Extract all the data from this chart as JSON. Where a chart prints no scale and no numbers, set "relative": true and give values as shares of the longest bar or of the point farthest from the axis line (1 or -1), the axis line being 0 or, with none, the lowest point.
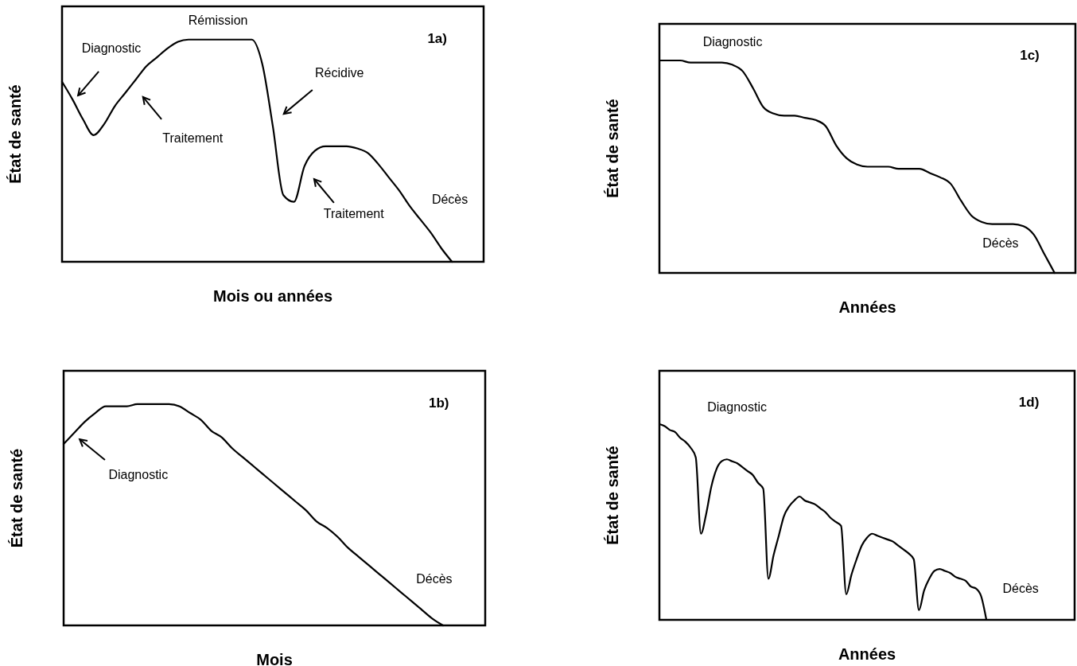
{
  "chart_data": [
    {
      "type": "line",
      "title": "1a)",
      "xlabel": "Mois ou années",
      "ylabel": "État de santé",
      "relative": true,
      "annotations": [
        "Rémission",
        "Diagnostic",
        "Traitement",
        "Récidive",
        "Traitement",
        "Décès"
      ],
      "categories": [
        null,
        null,
        null,
        null,
        null,
        null,
        null,
        null,
        null,
        null,
        null,
        null,
        null,
        null,
        null,
        null,
        null,
        null,
        null,
        null,
        null,
        null,
        null,
        null,
        null,
        null,
        null,
        null,
        null,
        null,
        null,
        null,
        null,
        null,
        null,
        null,
        null,
        null,
        null,
        null,
        null
      ],
      "series": [
        {
          "color": "#000000",
          "values": [
            0.81,
            0.73,
            0.64,
            0.57,
            0.62,
            0.7,
            0.76,
            0.82,
            0.88,
            0.92,
            0.96,
            0.99,
            1,
            1,
            1,
            1,
            1,
            1,
            1,
            0.89,
            0.61,
            0.3,
            0.27,
            0.43,
            0.5,
            0.52,
            0.52,
            0.52,
            0.51,
            0.49,
            0.44,
            0.38,
            0.32,
            0.25,
            0.19,
            0.13,
            0.06,
            0,
            null,
            null,
            null
          ]
        }
      ]
    },
    {
      "type": "line",
      "title": "1c)",
      "xlabel": "Années",
      "ylabel": "État de santé",
      "relative": true,
      "annotations": [
        "Diagnostic",
        "Décès"
      ],
      "categories": [
        null,
        null,
        null,
        null,
        null,
        null,
        null,
        null,
        null,
        null,
        null,
        null,
        null,
        null,
        null,
        null,
        null,
        null,
        null,
        null,
        null,
        null,
        null,
        null,
        null,
        null,
        null,
        null,
        null,
        null,
        null,
        null,
        null,
        null,
        null,
        null,
        null,
        null,
        null,
        null,
        null
      ],
      "series": [
        {
          "color": "#000000",
          "values": [
            1,
            1,
            1,
            0.99,
            0.99,
            0.99,
            0.99,
            0.98,
            0.95,
            0.87,
            0.78,
            0.75,
            0.74,
            0.74,
            0.73,
            0.72,
            0.69,
            0.6,
            0.54,
            0.51,
            0.5,
            0.5,
            0.5,
            0.49,
            0.49,
            0.49,
            0.47,
            0.45,
            0.42,
            0.34,
            0.27,
            0.24,
            0.23,
            0.23,
            0.23,
            0.22,
            0.18,
            0.09,
            0,
            null,
            null
          ]
        }
      ]
    },
    {
      "type": "line",
      "title": "1b)",
      "xlabel": "Mois",
      "ylabel": "État de santé",
      "relative": true,
      "annotations": [
        "Diagnostic",
        "Décès"
      ],
      "categories": [
        null,
        null,
        null,
        null,
        null,
        null,
        null,
        null,
        null,
        null,
        null,
        null,
        null,
        null,
        null,
        null,
        null,
        null,
        null,
        null,
        null,
        null,
        null,
        null,
        null,
        null,
        null,
        null,
        null,
        null,
        null,
        null,
        null,
        null,
        null,
        null,
        null,
        null,
        null,
        null,
        null
      ],
      "series": [
        {
          "color": "#000000",
          "values": [
            0.82,
            0.87,
            0.92,
            0.96,
            0.99,
            0.99,
            0.99,
            1,
            1,
            1,
            1,
            0.99,
            0.96,
            0.93,
            0.88,
            0.85,
            0.8,
            0.76,
            0.72,
            0.68,
            0.64,
            0.6,
            0.56,
            0.52,
            0.47,
            0.44,
            0.4,
            0.35,
            0.31,
            0.27,
            0.23,
            0.19,
            0.15,
            0.11,
            0.07,
            0.03,
            0,
            null,
            null,
            null,
            null
          ]
        }
      ]
    },
    {
      "type": "line",
      "title": "1d)",
      "xlabel": "Années",
      "ylabel": "État de santé",
      "relative": true,
      "annotations": [
        "Diagnostic",
        "Décès"
      ],
      "categories": [
        null,
        null,
        null,
        null,
        null,
        null,
        null,
        null,
        null,
        null,
        null,
        null,
        null,
        null,
        null,
        null,
        null,
        null,
        null,
        null,
        null,
        null,
        null,
        null,
        null,
        null,
        null,
        null,
        null,
        null,
        null,
        null,
        null,
        null,
        null,
        null,
        null,
        null,
        null,
        null,
        null,
        null,
        null,
        null,
        null,
        null,
        null,
        null,
        null,
        null,
        null,
        null,
        null,
        null,
        null,
        null,
        null,
        null,
        null,
        null,
        null,
        null,
        null,
        null,
        null,
        null,
        null,
        null,
        null,
        null,
        null,
        null,
        null,
        null,
        null,
        null,
        null,
        null,
        null,
        null,
        null
      ],
      "series": [
        {
          "color": "#000000",
          "values": [
            1,
            0.99,
            0.97,
            0.96,
            0.93,
            0.91,
            0.88,
            0.83,
            0.44,
            0.54,
            0.68,
            0.77,
            0.81,
            0.82,
            0.81,
            0.8,
            0.78,
            0.76,
            0.74,
            0.7,
            0.67,
            0.21,
            0.33,
            0.43,
            0.53,
            0.58,
            0.61,
            0.63,
            0.61,
            0.6,
            0.59,
            0.57,
            0.55,
            0.52,
            0.5,
            0.48,
            0.13,
            0.23,
            0.31,
            0.38,
            0.42,
            0.44,
            0.43,
            0.42,
            0.41,
            0.4,
            0.38,
            0.36,
            0.34,
            0.31,
            0.05,
            0.15,
            0.21,
            0.25,
            0.26,
            0.25,
            0.24,
            0.22,
            0.21,
            0.2,
            0.17,
            0.16,
            0.12,
            0,
            null,
            null,
            null,
            null,
            null,
            null,
            null,
            null,
            null,
            null,
            null,
            null,
            null,
            null,
            null,
            null,
            null
          ]
        }
      ]
    }
  ]
}
